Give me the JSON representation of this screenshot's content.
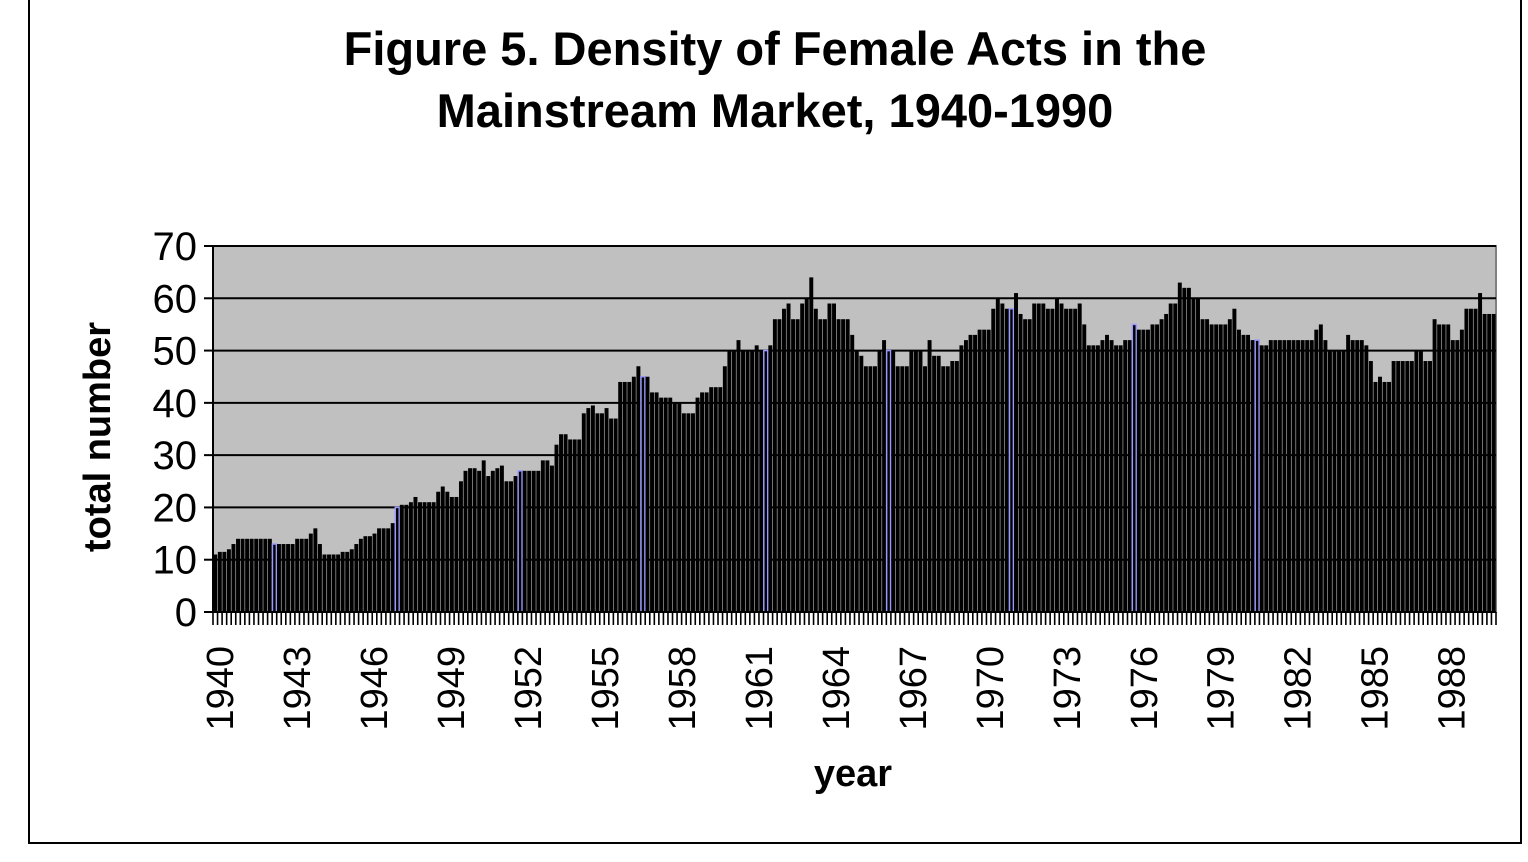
{
  "chart_data": {
    "type": "bar",
    "title_line1": "Figure 5. Density of Female Acts in the",
    "title_line2": "Mainstream Market, 1940-1990",
    "xlabel": "year",
    "ylabel": "total number",
    "ylim": [
      0,
      70
    ],
    "yticks": [
      "0",
      "10",
      "20",
      "30",
      "40",
      "50",
      "60",
      "70"
    ],
    "xtick_labels": [
      "1940",
      "1943",
      "1946",
      "1949",
      "1952",
      "1955",
      "1958",
      "1961",
      "1964",
      "1967",
      "1970",
      "1973",
      "1976",
      "1979",
      "1982",
      "1985",
      "1988"
    ],
    "grid": true,
    "plot_background": "#c0c0c0",
    "bar_color": "#000000",
    "highlight_color": "#9999ff",
    "highlight_indices": [
      13,
      40,
      67,
      94,
      121,
      148,
      175,
      202,
      229
    ],
    "values": [
      11,
      11.5,
      11.5,
      12,
      13,
      14,
      14,
      14,
      14,
      14,
      14,
      14,
      14,
      13,
      13,
      13,
      13,
      13,
      14,
      14,
      14,
      15,
      16,
      13,
      11,
      11,
      11,
      11,
      11.5,
      11.5,
      12,
      13,
      14,
      14.5,
      14.5,
      15,
      16,
      16,
      16,
      17,
      20,
      20.5,
      20.5,
      21,
      22,
      21,
      21,
      21,
      21,
      23,
      24,
      23,
      22,
      22,
      25,
      27,
      27.5,
      27.5,
      27,
      29,
      26,
      27,
      27.5,
      28,
      25,
      25,
      26,
      27,
      27,
      27,
      27,
      27,
      29,
      29,
      28,
      32,
      34,
      34,
      33,
      33,
      33,
      38,
      39,
      39.5,
      38,
      38,
      39,
      37,
      37,
      44,
      44,
      44,
      45,
      47,
      45,
      45,
      42,
      42,
      41,
      41,
      41,
      40,
      40,
      38,
      38,
      38,
      41,
      42,
      42,
      43,
      43,
      43,
      47,
      50,
      50,
      52,
      50,
      50,
      50,
      51,
      50,
      50,
      51,
      56,
      56,
      58,
      59,
      56,
      56,
      59,
      60,
      64,
      58,
      56,
      56,
      59,
      59,
      56,
      56,
      56,
      53,
      50,
      49,
      47,
      47,
      47,
      50,
      52,
      50,
      50,
      47,
      47,
      47,
      50,
      50,
      50,
      47,
      52,
      49,
      49,
      47,
      47,
      48,
      48,
      51,
      52,
      53,
      53,
      54,
      54,
      54,
      58,
      60,
      59,
      58,
      58,
      61,
      57,
      56,
      56,
      59,
      59,
      59,
      58,
      58,
      60,
      59,
      58,
      58,
      58,
      59,
      55,
      51,
      51,
      51,
      52,
      53,
      52,
      51,
      51,
      52,
      52,
      55,
      54,
      54,
      54,
      55,
      55,
      56,
      57,
      59,
      59,
      63,
      62,
      62,
      60,
      60,
      56,
      56,
      55,
      55,
      55,
      55,
      56,
      58,
      54,
      53,
      53,
      52,
      52,
      51,
      51,
      52,
      52,
      52,
      52,
      52,
      52,
      52,
      52,
      52,
      52,
      54,
      55,
      52,
      50,
      50,
      50,
      50,
      53,
      52,
      52,
      52,
      51,
      48,
      44,
      45,
      44,
      44,
      48,
      48,
      48,
      48,
      48,
      50,
      50,
      48,
      48,
      56,
      55,
      55,
      55,
      52,
      52,
      54,
      58,
      58,
      58,
      61,
      57,
      57,
      57
    ]
  }
}
